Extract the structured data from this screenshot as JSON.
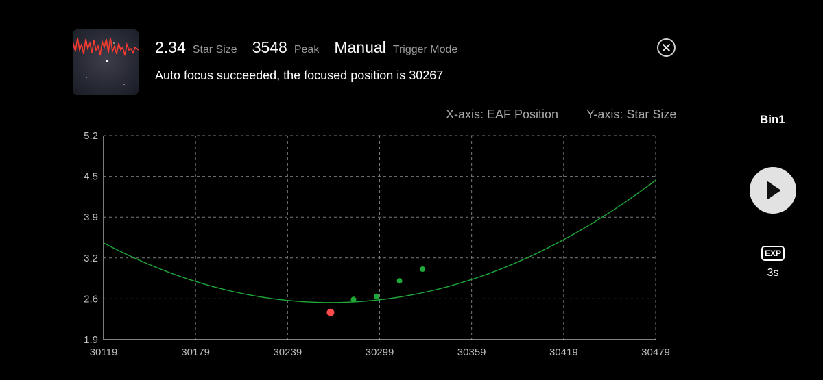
{
  "header": {
    "star_size_value": "2.34",
    "star_size_label": "Star Size",
    "peak_value": "3548",
    "peak_label": "Peak",
    "trigger_value": "Manual",
    "trigger_label": "Trigger Mode",
    "status_message": "Auto focus succeeded, the focused position is 30267",
    "close_icon": "close-circle-icon"
  },
  "axis_info": {
    "x": "X-axis: EAF Position",
    "y": "Y-axis: Star Size"
  },
  "side_panel": {
    "bin_label": "Bin1",
    "play_icon": "play-icon",
    "exp_badge": "EXP",
    "exp_value": "3s"
  },
  "chart_data": {
    "type": "scatter",
    "x_ticks": [
      "30119",
      "30179",
      "30239",
      "30299",
      "30359",
      "30419",
      "30479"
    ],
    "y_ticks": [
      "5.2",
      "4.5",
      "3.9",
      "3.2",
      "2.6",
      "1.9"
    ],
    "xlim": [
      30119,
      30479
    ],
    "ylim": [
      1.9,
      5.2
    ],
    "grid": true,
    "points": [
      {
        "x": 30267,
        "y": 2.34,
        "color": "#ff4b4b",
        "kind": "focus-result"
      },
      {
        "x": 30282,
        "y": 2.55,
        "color": "#1fa83a",
        "kind": "sample"
      },
      {
        "x": 30297,
        "y": 2.6,
        "color": "#1fa83a",
        "kind": "sample"
      },
      {
        "x": 30312,
        "y": 2.85,
        "color": "#1fa83a",
        "kind": "sample"
      },
      {
        "x": 30327,
        "y": 3.04,
        "color": "#1fa83a",
        "kind": "sample"
      }
    ],
    "fit_curve": {
      "type": "parabola",
      "vertex_x": 30267,
      "vertex_y": 2.5,
      "a": 4.4e-05,
      "color": "#1fa83a"
    }
  },
  "colors": {
    "background": "#000000",
    "grid": "#7a7a7a",
    "axis_text": "#bdbdbd",
    "curve": "#1fa83a",
    "focus_point": "#ff4b4b"
  }
}
